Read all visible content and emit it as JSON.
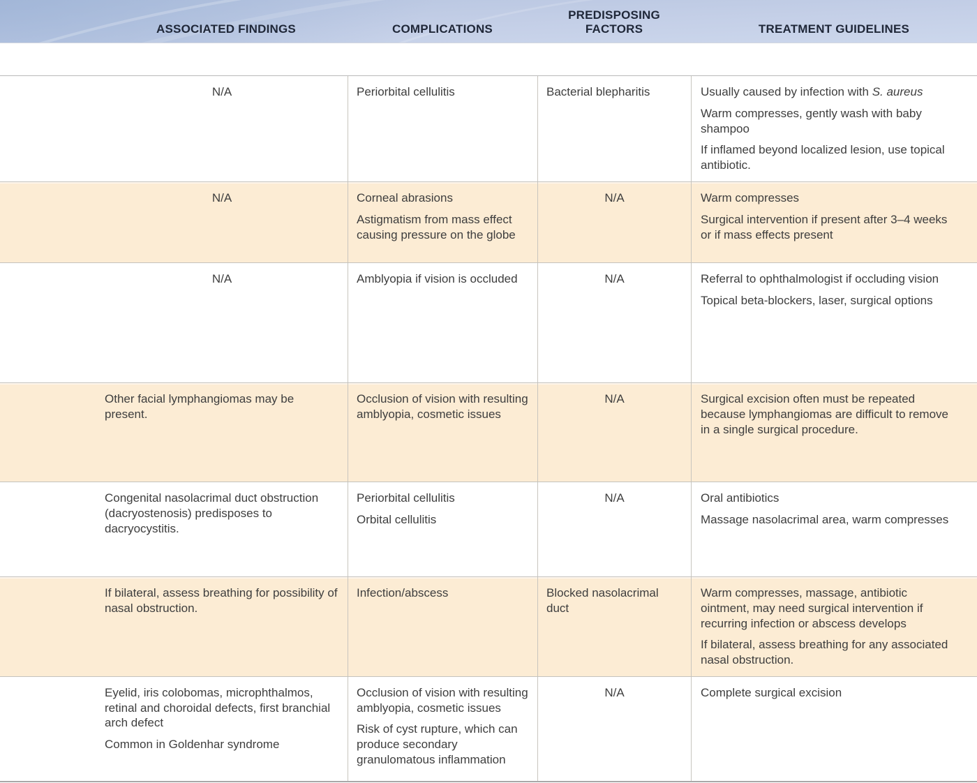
{
  "header": {
    "columns": [
      "ASSOCIATED FINDINGS",
      "COMPLICATIONS",
      "PREDISPOSING FACTORS",
      "TREATMENT GUIDELINES"
    ]
  },
  "colors": {
    "banner_top": "#b7c5e0",
    "banner_bottom": "#ccd7ec",
    "alt_row": "#fcecd4",
    "header_text": "#1f2738",
    "body_text": "#3e3e3e"
  },
  "table": {
    "rows": [
      {
        "associated_findings": [
          "N/A"
        ],
        "complications": [
          "Periorbital cellulitis"
        ],
        "predisposing_factors": [
          "Bacterial blepharitis"
        ],
        "treatment_guidelines": [
          {
            "pre": "Usually caused by infection with ",
            "italic": "S. aureus"
          },
          "Warm compresses, gently wash with baby shampoo",
          "If inflamed beyond localized lesion, use topical antibiotic."
        ]
      },
      {
        "associated_findings": [
          "N/A"
        ],
        "complications": [
          "Corneal abrasions",
          "Astigmatism from mass effect causing pressure on the globe"
        ],
        "predisposing_factors": [
          "N/A"
        ],
        "treatment_guidelines": [
          "Warm compresses",
          "Surgical intervention if present after 3–4 weeks or if mass effects present"
        ]
      },
      {
        "associated_findings": [
          "N/A"
        ],
        "complications": [
          "Amblyopia if vision is occluded"
        ],
        "predisposing_factors": [
          "N/A"
        ],
        "treatment_guidelines": [
          "Referral to ophthalmologist if occluding vision",
          "Topical beta-blockers, laser, surgical options"
        ]
      },
      {
        "associated_findings": [
          "Other facial lymphangiomas may be present."
        ],
        "complications": [
          "Occlusion of vision with resulting amblyopia, cosmetic issues"
        ],
        "predisposing_factors": [
          "N/A"
        ],
        "treatment_guidelines": [
          "Surgical excision often must be repeated because lymphangiomas are difficult to remove in a single surgical procedure."
        ]
      },
      {
        "associated_findings": [
          "Congenital nasolacrimal duct obstruction (dacryostenosis) predisposes to dacryocystitis."
        ],
        "complications": [
          "Periorbital cellulitis",
          "Orbital cellulitis"
        ],
        "predisposing_factors": [
          "N/A"
        ],
        "treatment_guidelines": [
          "Oral antibiotics",
          "Massage nasolacrimal area, warm compresses"
        ]
      },
      {
        "associated_findings": [
          "If bilateral, assess breathing for possibility of nasal obstruction."
        ],
        "complications": [
          "Infection/abscess"
        ],
        "predisposing_factors": [
          "Blocked nasolacrimal duct"
        ],
        "treatment_guidelines": [
          "Warm compresses, massage, antibiotic ointment, may need surgical intervention if recurring infection or abscess develops",
          "If bilateral, assess breathing for any associated nasal obstruction."
        ]
      },
      {
        "associated_findings": [
          "Eyelid, iris colobomas, microphthalmos, retinal and choroidal defects, first branchial arch defect",
          "Common in Goldenhar syndrome"
        ],
        "complications": [
          "Occlusion of vision with resulting amblyopia, cosmetic issues",
          "Risk of cyst rupture, which can produce secondary granulomatous inflammation"
        ],
        "predisposing_factors": [
          "N/A"
        ],
        "treatment_guidelines": [
          "Complete surgical excision"
        ]
      }
    ]
  }
}
